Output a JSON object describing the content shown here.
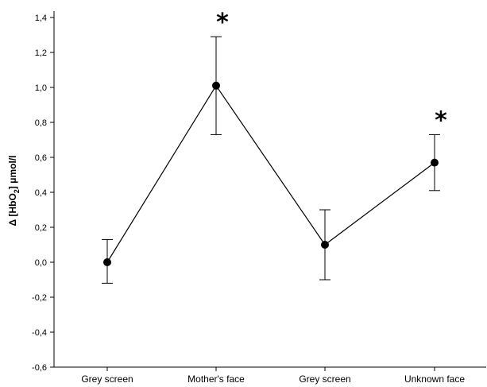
{
  "chart_data": {
    "type": "line",
    "categories": [
      "Grey screen",
      "Mother's face",
      "Grey screen",
      "Unknown face"
    ],
    "series": [
      {
        "values": [
          0.0,
          1.01,
          0.1,
          0.57
        ],
        "error_upper": [
          0.13,
          1.29,
          0.3,
          0.73
        ],
        "error_lower": [
          -0.12,
          0.73,
          -0.1,
          0.41
        ]
      }
    ],
    "ylabel_prefix": "Δ [HbO",
    "ylabel_sub": "2",
    "ylabel_suffix": "] μmol/l",
    "ylim": [
      -0.6,
      1.4
    ],
    "yticks": [
      "-0,6",
      "-0,4",
      "-0,2",
      "0,0",
      "0,2",
      "0,4",
      "0,6",
      "0,8",
      "1,0",
      "1,2",
      "1,4"
    ],
    "ytick_values": [
      -0.6,
      -0.4,
      -0.2,
      0.0,
      0.2,
      0.4,
      0.6,
      0.8,
      1.0,
      1.2,
      1.4
    ],
    "annotations": [
      {
        "category_index": 1,
        "text": "*"
      },
      {
        "category_index": 3,
        "text": "*"
      }
    ],
    "grid": false,
    "marker": "circle",
    "color": "#000000"
  }
}
